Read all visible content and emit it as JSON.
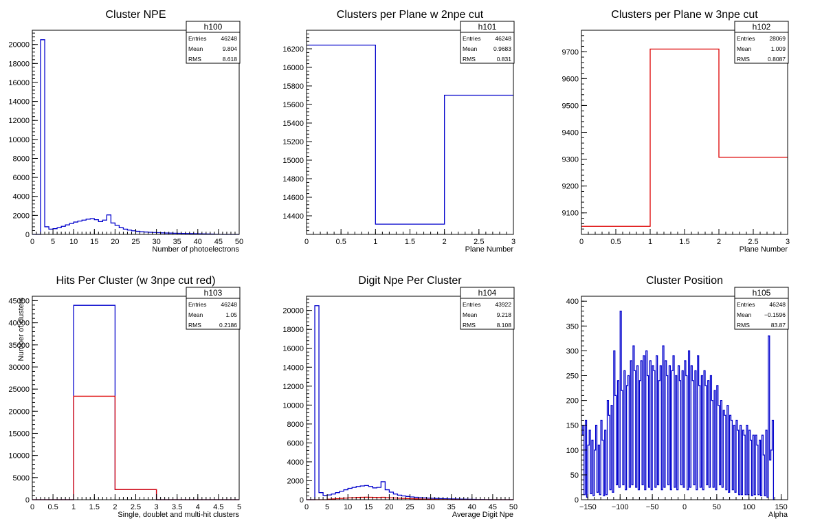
{
  "chart_data": [
    {
      "id": "h100",
      "type": "histogram",
      "title": "Cluster NPE",
      "xlabel": "Number of photoelectrons",
      "ylabel": "",
      "xlim": [
        0,
        50
      ],
      "ylim": [
        0,
        21500
      ],
      "xticks": [
        0,
        5,
        10,
        15,
        20,
        25,
        30,
        35,
        40,
        45,
        50
      ],
      "yticks": [
        0,
        2000,
        4000,
        6000,
        8000,
        10000,
        12000,
        14000,
        16000,
        18000,
        20000
      ],
      "stats": {
        "name": "h100",
        "entries": "46248",
        "mean": "9.804",
        "rms": "8.618"
      },
      "series": [
        {
          "color": "#0000cc",
          "edges_start": 0,
          "bin_width": 1,
          "values": [
            0,
            0,
            20500,
            800,
            550,
            600,
            700,
            850,
            1000,
            1150,
            1300,
            1400,
            1500,
            1600,
            1650,
            1550,
            1350,
            1500,
            2050,
            1200,
            950,
            700,
            550,
            450,
            380,
            320,
            280,
            250,
            220,
            200,
            180,
            160,
            140,
            130,
            120,
            110,
            100,
            90,
            80,
            70,
            60,
            50,
            40,
            30,
            20,
            10,
            0,
            0,
            0,
            0
          ]
        }
      ]
    },
    {
      "id": "h101",
      "type": "histogram",
      "title": "Clusters per Plane w 2npe cut",
      "xlabel": "Plane Number",
      "ylabel": "",
      "xlim": [
        0,
        3
      ],
      "ylim": [
        14200,
        16400
      ],
      "xticks": [
        0,
        0.5,
        1,
        1.5,
        2,
        2.5,
        3
      ],
      "yticks": [
        14400,
        14600,
        14800,
        15000,
        15200,
        15400,
        15600,
        15800,
        16000,
        16200
      ],
      "stats": {
        "name": "h101",
        "entries": "46248",
        "mean": "0.9683",
        "rms": "0.831"
      },
      "series": [
        {
          "color": "#0000cc",
          "edges_start": 0,
          "bin_width": 1,
          "values": [
            16240,
            14310,
            15700
          ]
        }
      ]
    },
    {
      "id": "h102",
      "type": "histogram",
      "title": "Clusters per Plane w 3npe cut",
      "xlabel": "Plane Number",
      "ylabel": "",
      "xlim": [
        0,
        3
      ],
      "ylim": [
        9020,
        9780
      ],
      "xticks": [
        0,
        0.5,
        1,
        1.5,
        2,
        2.5,
        3
      ],
      "yticks": [
        9100,
        9200,
        9300,
        9400,
        9500,
        9600,
        9700
      ],
      "stats": {
        "name": "h102",
        "entries": "28069",
        "mean": "1.009",
        "rms": "0.8087"
      },
      "series": [
        {
          "color": "#dd0000",
          "edges_start": 0,
          "bin_width": 1,
          "values": [
            9050,
            9710,
            9307
          ]
        }
      ]
    },
    {
      "id": "h103",
      "type": "histogram",
      "title": "Hits Per Cluster (w 3npe cut red)",
      "xlabel": "Single, doublet and multi-hit clusters",
      "ylabel": "Number of clusters",
      "xlim": [
        0,
        5
      ],
      "ylim": [
        0,
        46000
      ],
      "xticks": [
        0,
        0.5,
        1,
        1.5,
        2,
        2.5,
        3,
        3.5,
        4,
        4.5,
        5
      ],
      "yticks": [
        0,
        5000,
        10000,
        15000,
        20000,
        25000,
        30000,
        35000,
        40000,
        45000
      ],
      "stats": {
        "name": "h103",
        "entries": "46248",
        "mean": "1.05",
        "rms": "0.2186"
      },
      "series": [
        {
          "color": "#0000cc",
          "edges_start": 0,
          "bin_width": 1,
          "values": [
            0,
            43950,
            2300,
            0,
            0
          ]
        },
        {
          "color": "#dd0000",
          "edges_start": 0,
          "bin_width": 1,
          "values": [
            0,
            23400,
            2300,
            0,
            0
          ]
        }
      ]
    },
    {
      "id": "h104",
      "type": "histogram",
      "title": "Digit Npe Per Cluster",
      "xlabel": "Average Digit Npe",
      "ylabel": "",
      "xlim": [
        0,
        50
      ],
      "ylim": [
        0,
        21500
      ],
      "xticks": [
        0,
        5,
        10,
        15,
        20,
        25,
        30,
        35,
        40,
        45,
        50
      ],
      "yticks": [
        0,
        2000,
        4000,
        6000,
        8000,
        10000,
        12000,
        14000,
        16000,
        18000,
        20000
      ],
      "stats": {
        "name": "h104",
        "entries": "43922",
        "mean": "9.218",
        "rms": "8.108"
      },
      "series": [
        {
          "color": "#0000cc",
          "edges_start": 0,
          "bin_width": 1,
          "values": [
            0,
            0,
            20500,
            750,
            450,
            500,
            600,
            750,
            900,
            1050,
            1200,
            1300,
            1400,
            1450,
            1500,
            1400,
            1250,
            1300,
            1900,
            1050,
            800,
            600,
            480,
            400,
            340,
            290,
            250,
            220,
            190,
            170,
            150,
            130,
            115,
            100,
            90,
            80,
            70,
            60,
            50,
            40,
            30,
            20,
            15,
            10,
            5,
            0,
            0,
            0,
            0,
            0
          ]
        },
        {
          "color": "#dd0000",
          "edges_start": 0,
          "bin_width": 1,
          "values": [
            0,
            0,
            0,
            0,
            0,
            50,
            80,
            110,
            140,
            170,
            200,
            220,
            240,
            250,
            260,
            250,
            240,
            230,
            250,
            220,
            200,
            180,
            160,
            140,
            120,
            100,
            85,
            70,
            55,
            45,
            35,
            25,
            18,
            12,
            8,
            5,
            3,
            0,
            0,
            0,
            0,
            0,
            0,
            0,
            0,
            0,
            0,
            0,
            0,
            0
          ]
        }
      ]
    },
    {
      "id": "h105",
      "type": "histogram",
      "title": "Cluster Position",
      "xlabel": "Alpha",
      "ylabel": "",
      "xlim": [
        -160,
        160
      ],
      "ylim": [
        0,
        410
      ],
      "xticks": [
        -150,
        -100,
        -50,
        0,
        50,
        100,
        150
      ],
      "xtick_labels": [
        "−150",
        "−100",
        "−50",
        "0",
        "50",
        "100",
        "150"
      ],
      "yticks": [
        0,
        50,
        100,
        150,
        200,
        250,
        300,
        350,
        400
      ],
      "stats": {
        "name": "h105",
        "entries": "46248",
        "mean": "−0.1596",
        "rms": "83.87"
      },
      "series": [
        {
          "color": "#0000cc",
          "edges_start": -160,
          "bin_width": 2,
          "values": [
            130,
            150,
            10,
            160,
            5,
            110,
            140,
            12,
            120,
            8,
            100,
            150,
            15,
            110,
            10,
            160,
            120,
            8,
            140,
            10,
            200,
            170,
            20,
            190,
            15,
            300,
            210,
            30,
            240,
            25,
            380,
            220,
            30,
            260,
            20,
            230,
            250,
            25,
            280,
            30,
            310,
            260,
            25,
            270,
            20,
            240,
            280,
            30,
            290,
            20,
            300,
            250,
            25,
            280,
            20,
            270,
            260,
            25,
            290,
            30,
            240,
            270,
            20,
            310,
            25,
            280,
            250,
            30,
            270,
            20,
            260,
            290,
            25,
            250,
            20,
            270,
            240,
            30,
            260,
            25,
            280,
            250,
            20,
            300,
            25,
            270,
            240,
            30,
            260,
            20,
            290,
            230,
            25,
            250,
            20,
            260,
            230,
            30,
            240,
            25,
            250,
            200,
            25,
            220,
            20,
            230,
            190,
            30,
            200,
            25,
            180,
            170,
            20,
            190,
            15,
            170,
            160,
            20,
            150,
            15,
            160,
            140,
            10,
            150,
            10,
            140,
            130,
            10,
            150,
            10,
            140,
            120,
            8,
            130,
            10,
            130,
            110,
            10,
            120,
            8,
            130,
            90,
            8,
            140,
            5,
            330,
            80,
            100,
            160,
            0
          ]
        }
      ]
    }
  ]
}
